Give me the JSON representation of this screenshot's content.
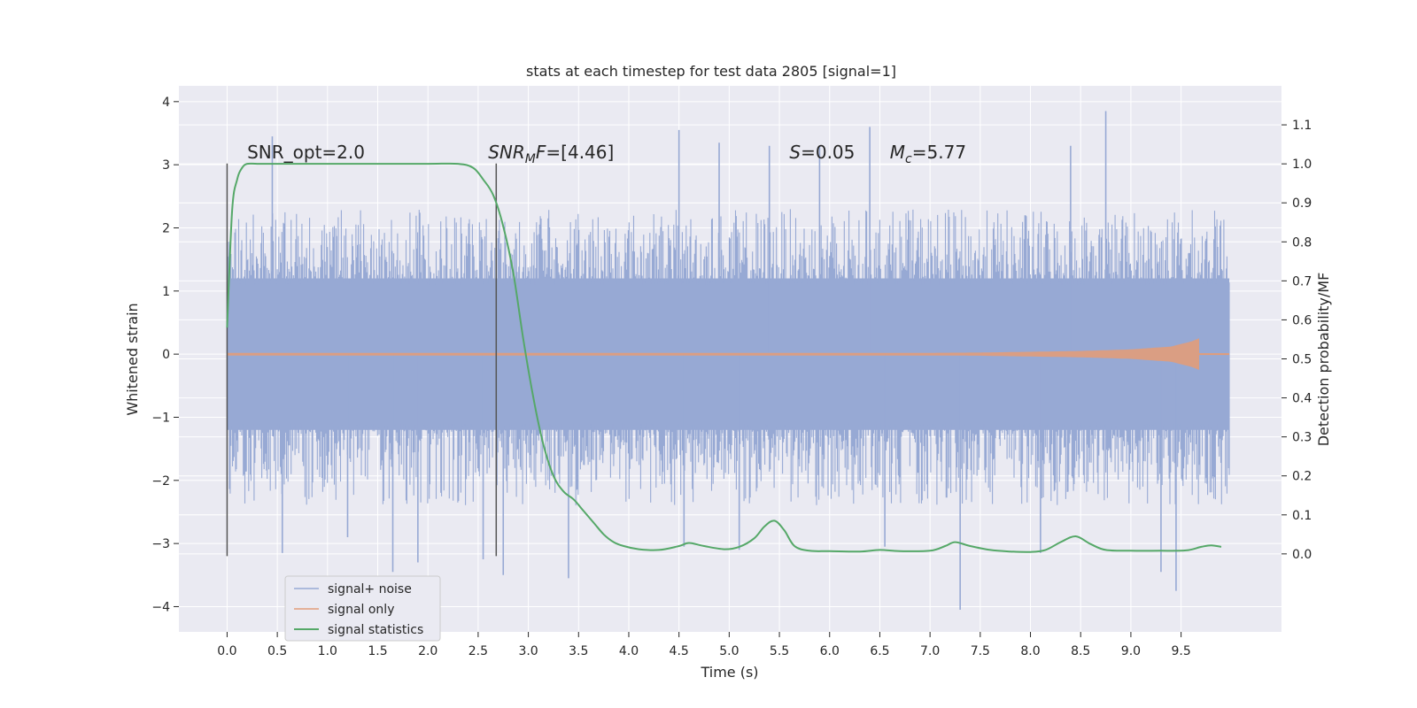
{
  "chart_data": {
    "type": "line",
    "title": "stats at each timestep for test data 2805 [signal=1]",
    "xlabel": "Time (s)",
    "ylabel": "Whitened strain",
    "y2label": "Detection probability/MF",
    "xlim": [
      -0.48,
      10.5
    ],
    "ylim": [
      -4.4,
      4.25
    ],
    "y2lim": [
      -0.2,
      1.2
    ],
    "xticks": [
      0.0,
      0.5,
      1.0,
      1.5,
      2.0,
      2.5,
      3.0,
      3.5,
      4.0,
      4.5,
      5.0,
      5.5,
      6.0,
      6.5,
      7.0,
      7.5,
      8.0,
      8.5,
      9.0,
      9.5
    ],
    "xtick_labels": [
      "0.0",
      "0.5",
      "1.0",
      "1.5",
      "2.0",
      "2.5",
      "3.0",
      "3.5",
      "4.0",
      "4.5",
      "5.0",
      "5.5",
      "6.0",
      "6.5",
      "7.0",
      "7.5",
      "8.0",
      "8.5",
      "9.0",
      "9.5"
    ],
    "yticks": [
      4,
      3,
      2,
      1,
      0,
      -1,
      -2,
      -3,
      -4
    ],
    "ytick_labels": [
      "4",
      "3",
      "2",
      "1",
      "0",
      "−1",
      "−2",
      "−3",
      "−4"
    ],
    "y2ticks": [
      1.1,
      1.0,
      0.9,
      0.8,
      0.7,
      0.6,
      0.5,
      0.4,
      0.3,
      0.2,
      0.1,
      0.0
    ],
    "y2tick_labels": [
      "1.1",
      "1.0",
      "0.9",
      "0.8",
      "0.7",
      "0.6",
      "0.5",
      "0.4",
      "0.3",
      "0.2",
      "0.1",
      "0.0"
    ],
    "grid": true,
    "legend_position": "lower-left",
    "noise": {
      "t_start": 0.0,
      "t_end": 9.98,
      "band": [
        -1.2,
        1.2
      ],
      "typical_peak": [
        -2.0,
        1.95
      ]
    },
    "series": [
      {
        "name": "signal+ noise",
        "color": "#97a9d4",
        "axis": "left",
        "extreme_spikes": [
          [
            0.45,
            3.45
          ],
          [
            0.55,
            -3.15
          ],
          [
            1.2,
            -2.9
          ],
          [
            1.65,
            -3.45
          ],
          [
            1.9,
            -3.3
          ],
          [
            2.55,
            -3.25
          ],
          [
            2.75,
            -3.5
          ],
          [
            3.4,
            -3.55
          ],
          [
            4.5,
            3.55
          ],
          [
            4.55,
            -3.05
          ],
          [
            4.9,
            3.35
          ],
          [
            5.1,
            -3.1
          ],
          [
            5.4,
            3.3
          ],
          [
            5.9,
            3.3
          ],
          [
            6.4,
            3.6
          ],
          [
            6.55,
            -3.05
          ],
          [
            7.3,
            -4.05
          ],
          [
            8.1,
            -3.15
          ],
          [
            8.4,
            3.3
          ],
          [
            8.75,
            3.85
          ],
          [
            9.3,
            -3.45
          ],
          [
            9.45,
            -3.75
          ]
        ]
      },
      {
        "name": "signal only",
        "color": "#e19c7a",
        "axis": "left",
        "envelope": {
          "t": [
            0.0,
            4.0,
            6.0,
            7.5,
            8.5,
            9.0,
            9.4,
            9.6,
            9.68
          ],
          "amp": [
            0.0,
            0.005,
            0.012,
            0.025,
            0.05,
            0.075,
            0.12,
            0.2,
            0.25
          ]
        }
      },
      {
        "name": "signal statistics",
        "color": "#55a868",
        "axis": "right",
        "x": [
          0.0,
          0.05,
          0.1,
          0.15,
          0.2,
          0.3,
          0.5,
          1.0,
          1.5,
          2.0,
          2.3,
          2.45,
          2.55,
          2.65,
          2.75,
          2.85,
          2.95,
          3.05,
          3.15,
          3.25,
          3.35,
          3.45,
          3.55,
          3.65,
          3.75,
          3.85,
          3.95,
          4.1,
          4.3,
          4.5,
          4.6,
          4.75,
          4.95,
          5.1,
          5.25,
          5.35,
          5.45,
          5.55,
          5.65,
          5.8,
          6.0,
          6.3,
          6.5,
          6.7,
          7.0,
          7.15,
          7.25,
          7.4,
          7.6,
          7.8,
          8.0,
          8.15,
          8.3,
          8.45,
          8.6,
          8.75,
          9.0,
          9.3,
          9.55,
          9.7,
          9.8,
          9.9
        ],
        "y": [
          0.58,
          0.88,
          0.96,
          0.99,
          1.0,
          1.0,
          1.0,
          1.0,
          1.0,
          1.0,
          1.0,
          0.99,
          0.96,
          0.92,
          0.84,
          0.72,
          0.55,
          0.4,
          0.28,
          0.2,
          0.16,
          0.14,
          0.11,
          0.08,
          0.05,
          0.03,
          0.02,
          0.012,
          0.01,
          0.02,
          0.028,
          0.02,
          0.012,
          0.018,
          0.04,
          0.07,
          0.085,
          0.06,
          0.02,
          0.008,
          0.007,
          0.006,
          0.01,
          0.007,
          0.008,
          0.02,
          0.03,
          0.02,
          0.01,
          0.006,
          0.005,
          0.01,
          0.03,
          0.045,
          0.025,
          0.01,
          0.008,
          0.008,
          0.009,
          0.018,
          0.022,
          0.018
        ]
      }
    ],
    "vlines": [
      {
        "x": 0.0,
        "ymin": -3.2,
        "ymax": 3.02,
        "color": "#555555"
      },
      {
        "x": 2.68,
        "ymin": -3.2,
        "ymax": 3.02,
        "color": "#555555"
      }
    ],
    "annotations": [
      {
        "id": "snr-opt",
        "text": "SNR_opt=2.0",
        "x": 0.2,
        "y": 3.1
      },
      {
        "id": "snr-mf",
        "base": "SNR",
        "sub": "M",
        "suffix": "F=[4.46]",
        "x": 2.6,
        "y": 3.1
      },
      {
        "id": "s-stat",
        "base": "S",
        "suffix": "=0.05",
        "x": 5.6,
        "y": 3.1
      },
      {
        "id": "mc",
        "base": "M",
        "sub": "c",
        "suffix": "=5.77",
        "x": 6.6,
        "y": 3.1
      }
    ]
  }
}
